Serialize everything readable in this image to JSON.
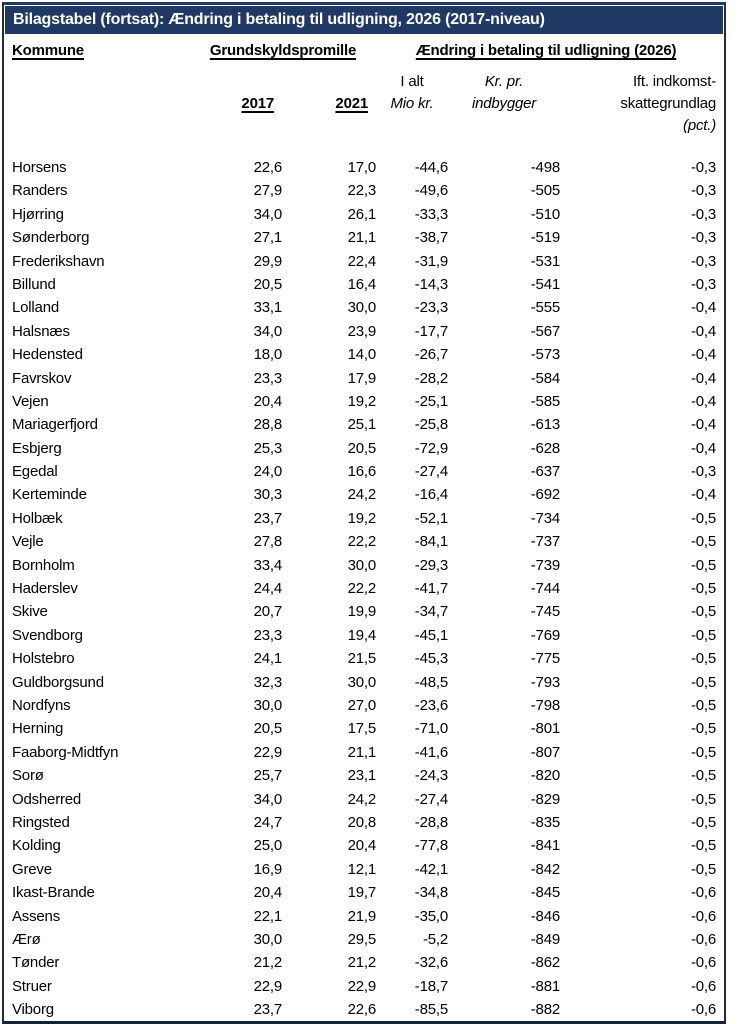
{
  "title": "Bilagstabel (fortsat): Ændring i betaling til udligning, 2026 (2017-niveau)",
  "colors": {
    "title_bg": "#1f3864",
    "title_text": "#ffffff",
    "body_text": "#000000",
    "frame_border": "#1f3864"
  },
  "table": {
    "group_headers": {
      "kommune": "Kommune",
      "grundskyld": "Grundskyldspromille",
      "aendring": "Ændring i betaling til udligning (2026)"
    },
    "sub_headers": {
      "y2017": "2017",
      "y2021": "2021",
      "ialt_line1": "I alt",
      "ialt_line2": "Mio kr.",
      "krpr_line1": "Kr. pr.",
      "krpr_line2": "indbygger",
      "pct_line1": "Ift. indkomst-",
      "pct_line2": "skattegrundlag",
      "pct_line3": "(pct.)"
    },
    "rows": [
      {
        "kommune": "Horsens",
        "g2017": "22,6",
        "g2021": "17,0",
        "ialt": "-44,6",
        "kr_pr": "-498",
        "pct": "-0,3"
      },
      {
        "kommune": "Randers",
        "g2017": "27,9",
        "g2021": "22,3",
        "ialt": "-49,6",
        "kr_pr": "-505",
        "pct": "-0,3"
      },
      {
        "kommune": "Hjørring",
        "g2017": "34,0",
        "g2021": "26,1",
        "ialt": "-33,3",
        "kr_pr": "-510",
        "pct": "-0,3"
      },
      {
        "kommune": "Sønderborg",
        "g2017": "27,1",
        "g2021": "21,1",
        "ialt": "-38,7",
        "kr_pr": "-519",
        "pct": "-0,3"
      },
      {
        "kommune": "Frederikshavn",
        "g2017": "29,9",
        "g2021": "22,4",
        "ialt": "-31,9",
        "kr_pr": "-531",
        "pct": "-0,3"
      },
      {
        "kommune": "Billund",
        "g2017": "20,5",
        "g2021": "16,4",
        "ialt": "-14,3",
        "kr_pr": "-541",
        "pct": "-0,3"
      },
      {
        "kommune": "Lolland",
        "g2017": "33,1",
        "g2021": "30,0",
        "ialt": "-23,3",
        "kr_pr": "-555",
        "pct": "-0,4"
      },
      {
        "kommune": "Halsnæs",
        "g2017": "34,0",
        "g2021": "23,9",
        "ialt": "-17,7",
        "kr_pr": "-567",
        "pct": "-0,4"
      },
      {
        "kommune": "Hedensted",
        "g2017": "18,0",
        "g2021": "14,0",
        "ialt": "-26,7",
        "kr_pr": "-573",
        "pct": "-0,4"
      },
      {
        "kommune": "Favrskov",
        "g2017": "23,3",
        "g2021": "17,9",
        "ialt": "-28,2",
        "kr_pr": "-584",
        "pct": "-0,4"
      },
      {
        "kommune": "Vejen",
        "g2017": "20,4",
        "g2021": "19,2",
        "ialt": "-25,1",
        "kr_pr": "-585",
        "pct": "-0,4"
      },
      {
        "kommune": "Mariagerfjord",
        "g2017": "28,8",
        "g2021": "25,1",
        "ialt": "-25,8",
        "kr_pr": "-613",
        "pct": "-0,4"
      },
      {
        "kommune": "Esbjerg",
        "g2017": "25,3",
        "g2021": "20,5",
        "ialt": "-72,9",
        "kr_pr": "-628",
        "pct": "-0,4"
      },
      {
        "kommune": "Egedal",
        "g2017": "24,0",
        "g2021": "16,6",
        "ialt": "-27,4",
        "kr_pr": "-637",
        "pct": "-0,3"
      },
      {
        "kommune": "Kerteminde",
        "g2017": "30,3",
        "g2021": "24,2",
        "ialt": "-16,4",
        "kr_pr": "-692",
        "pct": "-0,4"
      },
      {
        "kommune": "Holbæk",
        "g2017": "23,7",
        "g2021": "19,2",
        "ialt": "-52,1",
        "kr_pr": "-734",
        "pct": "-0,5"
      },
      {
        "kommune": "Vejle",
        "g2017": "27,8",
        "g2021": "22,2",
        "ialt": "-84,1",
        "kr_pr": "-737",
        "pct": "-0,5"
      },
      {
        "kommune": "Bornholm",
        "g2017": "33,4",
        "g2021": "30,0",
        "ialt": "-29,3",
        "kr_pr": "-739",
        "pct": "-0,5"
      },
      {
        "kommune": "Haderslev",
        "g2017": "24,4",
        "g2021": "22,2",
        "ialt": "-41,7",
        "kr_pr": "-744",
        "pct": "-0,5"
      },
      {
        "kommune": "Skive",
        "g2017": "20,7",
        "g2021": "19,9",
        "ialt": "-34,7",
        "kr_pr": "-745",
        "pct": "-0,5"
      },
      {
        "kommune": "Svendborg",
        "g2017": "23,3",
        "g2021": "19,4",
        "ialt": "-45,1",
        "kr_pr": "-769",
        "pct": "-0,5"
      },
      {
        "kommune": "Holstebro",
        "g2017": "24,1",
        "g2021": "21,5",
        "ialt": "-45,3",
        "kr_pr": "-775",
        "pct": "-0,5"
      },
      {
        "kommune": "Guldborgsund",
        "g2017": "32,3",
        "g2021": "30,0",
        "ialt": "-48,5",
        "kr_pr": "-793",
        "pct": "-0,5"
      },
      {
        "kommune": "Nordfyns",
        "g2017": "30,0",
        "g2021": "27,0",
        "ialt": "-23,6",
        "kr_pr": "-798",
        "pct": "-0,5"
      },
      {
        "kommune": "Herning",
        "g2017": "20,5",
        "g2021": "17,5",
        "ialt": "-71,0",
        "kr_pr": "-801",
        "pct": "-0,5"
      },
      {
        "kommune": "Faaborg-Midtfyn",
        "g2017": "22,9",
        "g2021": "21,1",
        "ialt": "-41,6",
        "kr_pr": "-807",
        "pct": "-0,5"
      },
      {
        "kommune": "Sorø",
        "g2017": "25,7",
        "g2021": "23,1",
        "ialt": "-24,3",
        "kr_pr": "-820",
        "pct": "-0,5"
      },
      {
        "kommune": "Odsherred",
        "g2017": "34,0",
        "g2021": "24,2",
        "ialt": "-27,4",
        "kr_pr": "-829",
        "pct": "-0,5"
      },
      {
        "kommune": "Ringsted",
        "g2017": "24,7",
        "g2021": "20,8",
        "ialt": "-28,8",
        "kr_pr": "-835",
        "pct": "-0,5"
      },
      {
        "kommune": "Kolding",
        "g2017": "25,0",
        "g2021": "20,4",
        "ialt": "-77,8",
        "kr_pr": "-841",
        "pct": "-0,5"
      },
      {
        "kommune": "Greve",
        "g2017": "16,9",
        "g2021": "12,1",
        "ialt": "-42,1",
        "kr_pr": "-842",
        "pct": "-0,5"
      },
      {
        "kommune": "Ikast-Brande",
        "g2017": "20,4",
        "g2021": "19,7",
        "ialt": "-34,8",
        "kr_pr": "-845",
        "pct": "-0,6"
      },
      {
        "kommune": "Assens",
        "g2017": "22,1",
        "g2021": "21,9",
        "ialt": "-35,0",
        "kr_pr": "-846",
        "pct": "-0,6"
      },
      {
        "kommune": "Ærø",
        "g2017": "30,0",
        "g2021": "29,5",
        "ialt": "-5,2",
        "kr_pr": "-849",
        "pct": "-0,6"
      },
      {
        "kommune": "Tønder",
        "g2017": "21,2",
        "g2021": "21,2",
        "ialt": "-32,6",
        "kr_pr": "-862",
        "pct": "-0,6"
      },
      {
        "kommune": "Struer",
        "g2017": "22,9",
        "g2021": "22,9",
        "ialt": "-18,7",
        "kr_pr": "-881",
        "pct": "-0,6"
      },
      {
        "kommune": "Viborg",
        "g2017": "23,7",
        "g2021": "22,6",
        "ialt": "-85,5",
        "kr_pr": "-882",
        "pct": "-0,6"
      }
    ]
  }
}
